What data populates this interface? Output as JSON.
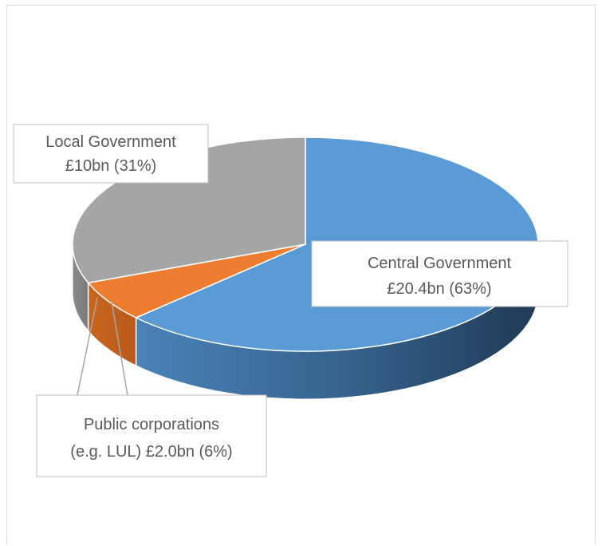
{
  "chart_data": {
    "type": "pie",
    "style": "3d",
    "slices": [
      {
        "name": "Central Government",
        "value": 20.4,
        "value_label": "£20.4bn (63%)",
        "percent": 63,
        "color": "#5b9bd5"
      },
      {
        "name": "Public corporations (e.g. LUL)",
        "value": 2.0,
        "value_label": "£2.0bn (6%)",
        "percent": 6,
        "color": "#ed7d31"
      },
      {
        "name": "Local Government",
        "value": 10,
        "value_label": "£10bn (31%)",
        "percent": 31,
        "color": "#a5a5a5"
      }
    ],
    "labels": {
      "central_line1": "Central Government",
      "central_line2": "£20.4bn (63%)",
      "public_line1": "Public corporations",
      "public_line2": "(e.g. LUL) £2.0bn (6%)",
      "local_line1": "Local Government",
      "local_line2": "£10bn (31%)"
    },
    "legend": "none"
  }
}
